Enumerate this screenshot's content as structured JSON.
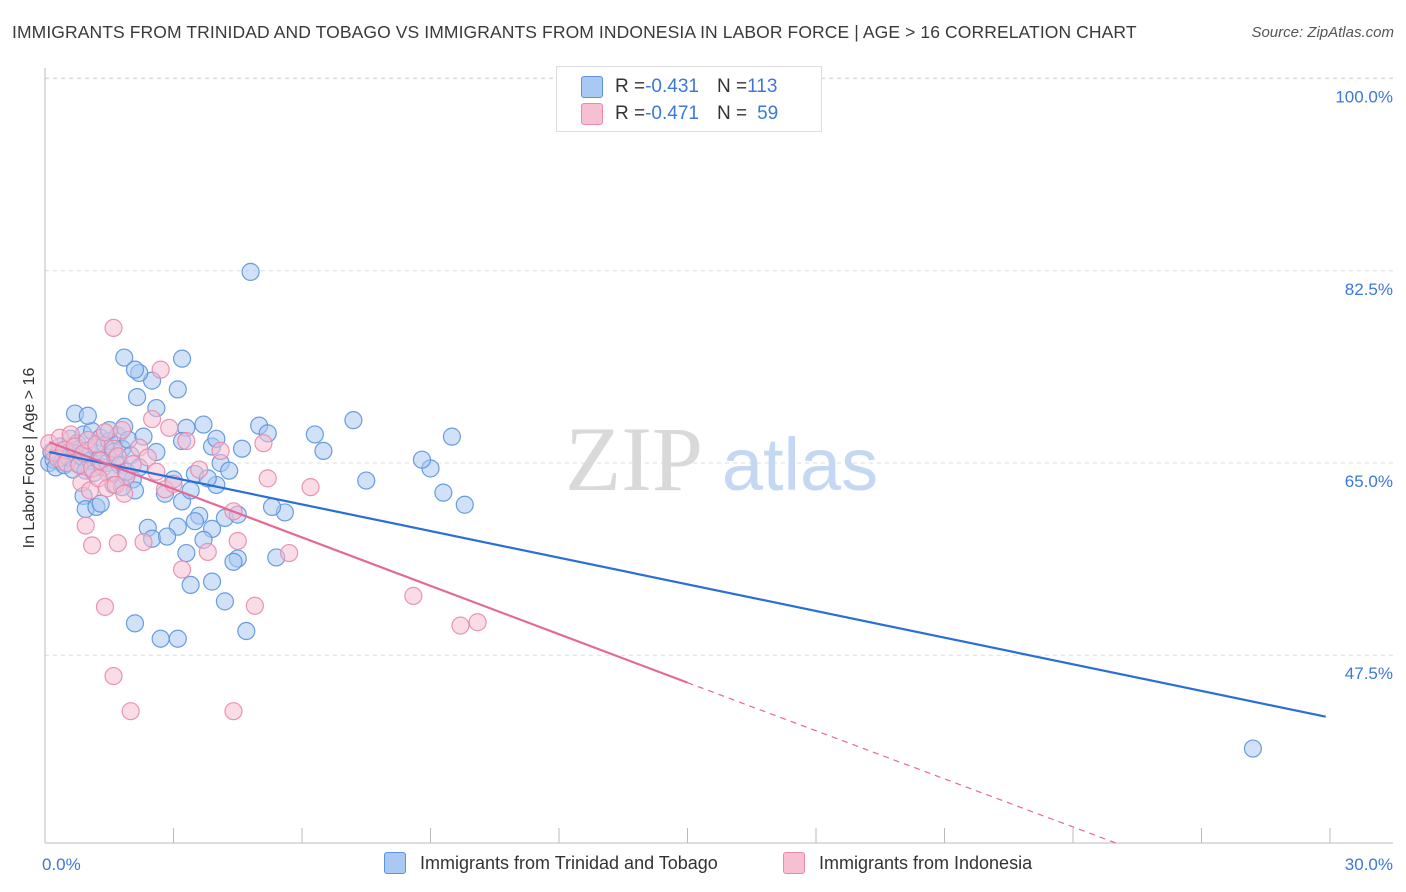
{
  "header": {
    "title": "IMMIGRANTS FROM TRINIDAD AND TOBAGO VS IMMIGRANTS FROM INDONESIA IN LABOR FORCE | AGE > 16 CORRELATION CHART",
    "source": "Source: ZipAtlas.com"
  },
  "watermark": {
    "zip": "ZIP",
    "atlas": "atlas"
  },
  "legend": {
    "rows": [
      {
        "r_label": "R = ",
        "r_value": "-0.431",
        "n_label": "N = ",
        "n_value": "113",
        "color": "#9ec2f0"
      },
      {
        "r_label": "R = ",
        "r_value": "-0.471",
        "n_label": "N = ",
        "n_value": "59",
        "color": "#f4b3c8"
      }
    ]
  },
  "colors": {
    "blue_fill": "#a9c8f2",
    "blue_stroke": "#5b93dd",
    "blue_line": "#2a6fd6",
    "pink_fill": "#f6c0d2",
    "pink_stroke": "#e98aab",
    "pink_line": "#e26a96",
    "grid": "#dddddd",
    "axis": "#bbbbbb",
    "tick_text": "#3b78d8"
  },
  "chart_data": {
    "type": "scatter",
    "title": "IMMIGRANTS FROM TRINIDAD AND TOBAGO VS IMMIGRANTS FROM INDONESIA IN LABOR FORCE | AGE > 16 CORRELATION CHART",
    "xlabel": "",
    "ylabel": "In Labor Force | Age > 16",
    "xlim": [
      0,
      30
    ],
    "ylim": [
      30.4,
      100.6
    ],
    "x_tick_labels": [
      "0.0%",
      "30.0%"
    ],
    "y_ticks": [
      47.5,
      65.0,
      82.5,
      100.0
    ],
    "y_tick_labels": [
      "47.5%",
      "65.0%",
      "82.5%",
      "100.0%"
    ],
    "grid": true,
    "legend_position": "top-center",
    "series": [
      {
        "name": "Immigrants from Trinidad and Tobago",
        "color": "#a9c8f2",
        "r": -0.431,
        "n": 113,
        "trend": {
          "x": [
            0.1,
            29.9
          ],
          "y": [
            66.0,
            41.9
          ],
          "dashed_from_x": null
        },
        "points": [
          [
            0.1,
            65.0
          ],
          [
            0.15,
            66.0
          ],
          [
            0.2,
            65.3
          ],
          [
            0.25,
            64.6
          ],
          [
            0.3,
            65.8
          ],
          [
            0.35,
            66.5
          ],
          [
            0.4,
            65.1
          ],
          [
            0.45,
            64.8
          ],
          [
            0.5,
            66.2
          ],
          [
            0.55,
            65.5
          ],
          [
            0.6,
            67.2
          ],
          [
            0.65,
            64.4
          ],
          [
            0.7,
            65.9
          ],
          [
            0.75,
            66.8
          ],
          [
            0.8,
            64.9
          ],
          [
            0.85,
            65.6
          ],
          [
            0.9,
            67.6
          ],
          [
            0.95,
            64.3
          ],
          [
            1.0,
            66.1
          ],
          [
            1.05,
            65.2
          ],
          [
            1.1,
            67.9
          ],
          [
            1.15,
            64.1
          ],
          [
            1.2,
            66.4
          ],
          [
            1.25,
            65.3
          ],
          [
            1.3,
            67.3
          ],
          [
            1.35,
            64.6
          ],
          [
            1.4,
            66.7
          ],
          [
            1.45,
            65.0
          ],
          [
            1.5,
            67.0
          ],
          [
            1.55,
            64.2
          ],
          [
            1.6,
            66.0
          ],
          [
            1.65,
            65.4
          ],
          [
            1.7,
            67.5
          ],
          [
            1.75,
            64.8
          ],
          [
            1.8,
            66.3
          ],
          [
            1.85,
            68.3
          ],
          [
            1.9,
            63.8
          ],
          [
            1.95,
            67.1
          ],
          [
            2.0,
            65.7
          ],
          [
            2.05,
            63.5
          ],
          [
            0.7,
            69.5
          ],
          [
            1.0,
            69.3
          ],
          [
            1.5,
            68.0
          ],
          [
            2.1,
            62.5
          ],
          [
            2.3,
            67.4
          ],
          [
            0.9,
            62.0
          ],
          [
            0.95,
            60.8
          ],
          [
            1.2,
            61.0
          ],
          [
            1.3,
            61.3
          ],
          [
            1.6,
            63.0
          ],
          [
            1.8,
            62.8
          ],
          [
            1.9,
            64.2
          ],
          [
            2.2,
            64.6
          ],
          [
            2.4,
            59.1
          ],
          [
            2.6,
            66.0
          ],
          [
            2.8,
            62.2
          ],
          [
            3.0,
            63.5
          ],
          [
            2.6,
            70.0
          ],
          [
            2.5,
            72.5
          ],
          [
            2.2,
            73.2
          ],
          [
            1.85,
            74.6
          ],
          [
            2.15,
            71.0
          ],
          [
            2.1,
            73.5
          ],
          [
            3.3,
            68.2
          ],
          [
            3.2,
            74.5
          ],
          [
            3.1,
            71.7
          ],
          [
            3.2,
            61.5
          ],
          [
            3.1,
            59.2
          ],
          [
            3.4,
            62.5
          ],
          [
            3.7,
            68.5
          ],
          [
            3.5,
            64.0
          ],
          [
            3.6,
            60.2
          ],
          [
            3.5,
            59.7
          ],
          [
            3.3,
            56.8
          ],
          [
            4.0,
            63.0
          ],
          [
            3.9,
            59.0
          ],
          [
            3.8,
            63.6
          ],
          [
            3.9,
            54.2
          ],
          [
            4.2,
            60.0
          ],
          [
            4.1,
            65.0
          ],
          [
            3.2,
            67.0
          ],
          [
            3.9,
            66.5
          ],
          [
            4.3,
            64.3
          ],
          [
            4.5,
            60.3
          ],
          [
            4.6,
            66.3
          ],
          [
            4.0,
            67.2
          ],
          [
            3.7,
            58.0
          ],
          [
            4.5,
            56.3
          ],
          [
            4.2,
            52.4
          ],
          [
            3.4,
            53.9
          ],
          [
            4.4,
            56.0
          ],
          [
            2.5,
            58.1
          ],
          [
            2.7,
            49.0
          ],
          [
            2.85,
            58.3
          ],
          [
            2.1,
            50.4
          ],
          [
            3.1,
            49.0
          ],
          [
            4.7,
            49.7
          ],
          [
            5.0,
            68.4
          ],
          [
            5.2,
            67.7
          ],
          [
            5.4,
            56.4
          ],
          [
            5.6,
            60.5
          ],
          [
            5.3,
            61.0
          ],
          [
            6.3,
            67.6
          ],
          [
            6.5,
            66.1
          ],
          [
            7.2,
            68.9
          ],
          [
            7.5,
            63.4
          ],
          [
            9.0,
            64.5
          ],
          [
            9.3,
            62.3
          ],
          [
            9.5,
            67.4
          ],
          [
            8.8,
            65.3
          ],
          [
            9.8,
            61.2
          ],
          [
            4.8,
            82.4
          ],
          [
            28.2,
            39.0
          ]
        ]
      },
      {
        "name": "Immigrants from Indonesia",
        "color": "#f6c0d2",
        "r": -0.471,
        "n": 59,
        "trend": {
          "x": [
            0.1,
            15.0
          ],
          "y": [
            66.9,
            45.0
          ],
          "dashed_from_x": 15.0,
          "dash_end": [
            25.0,
            30.4
          ]
        },
        "points": [
          [
            0.1,
            66.8
          ],
          [
            0.2,
            66.0
          ],
          [
            0.3,
            65.4
          ],
          [
            0.35,
            67.3
          ],
          [
            0.45,
            66.2
          ],
          [
            0.5,
            65.0
          ],
          [
            0.6,
            67.6
          ],
          [
            0.7,
            66.5
          ],
          [
            0.8,
            64.8
          ],
          [
            0.9,
            65.9
          ],
          [
            1.0,
            67.1
          ],
          [
            1.1,
            64.5
          ],
          [
            1.2,
            66.7
          ],
          [
            1.3,
            65.2
          ],
          [
            1.4,
            67.8
          ],
          [
            1.5,
            64.0
          ],
          [
            1.6,
            66.3
          ],
          [
            1.7,
            65.6
          ],
          [
            1.8,
            68.0
          ],
          [
            1.9,
            63.8
          ],
          [
            0.85,
            63.2
          ],
          [
            1.05,
            62.5
          ],
          [
            1.25,
            63.6
          ],
          [
            1.45,
            62.7
          ],
          [
            1.65,
            63.0
          ],
          [
            1.85,
            62.2
          ],
          [
            2.05,
            64.9
          ],
          [
            2.2,
            66.4
          ],
          [
            2.4,
            65.5
          ],
          [
            2.6,
            64.2
          ],
          [
            2.8,
            62.6
          ],
          [
            3.0,
            63.1
          ],
          [
            2.5,
            69.0
          ],
          [
            2.9,
            68.2
          ],
          [
            3.3,
            67.0
          ],
          [
            3.6,
            64.4
          ],
          [
            0.95,
            59.3
          ],
          [
            1.1,
            57.5
          ],
          [
            1.7,
            57.7
          ],
          [
            2.3,
            57.8
          ],
          [
            3.2,
            55.3
          ],
          [
            3.8,
            56.9
          ],
          [
            4.5,
            57.9
          ],
          [
            1.4,
            51.9
          ],
          [
            1.6,
            77.3
          ],
          [
            2.7,
            73.5
          ],
          [
            4.1,
            66.1
          ],
          [
            4.4,
            60.6
          ],
          [
            5.1,
            66.8
          ],
          [
            4.9,
            52.0
          ],
          [
            5.2,
            63.6
          ],
          [
            5.7,
            56.8
          ],
          [
            6.2,
            62.8
          ],
          [
            8.6,
            52.9
          ],
          [
            10.1,
            50.5
          ],
          [
            9.7,
            50.2
          ],
          [
            1.6,
            45.6
          ],
          [
            2.0,
            42.4
          ],
          [
            4.4,
            42.4
          ]
        ]
      }
    ]
  },
  "bottom_legend": {
    "items": [
      {
        "label": "Immigrants from Trinidad and Tobago",
        "color": "#a9c8f2"
      },
      {
        "label": "Immigrants from Indonesia",
        "color": "#f6c0d2"
      }
    ]
  },
  "ylabel_text": "In Labor Force | Age > 16"
}
